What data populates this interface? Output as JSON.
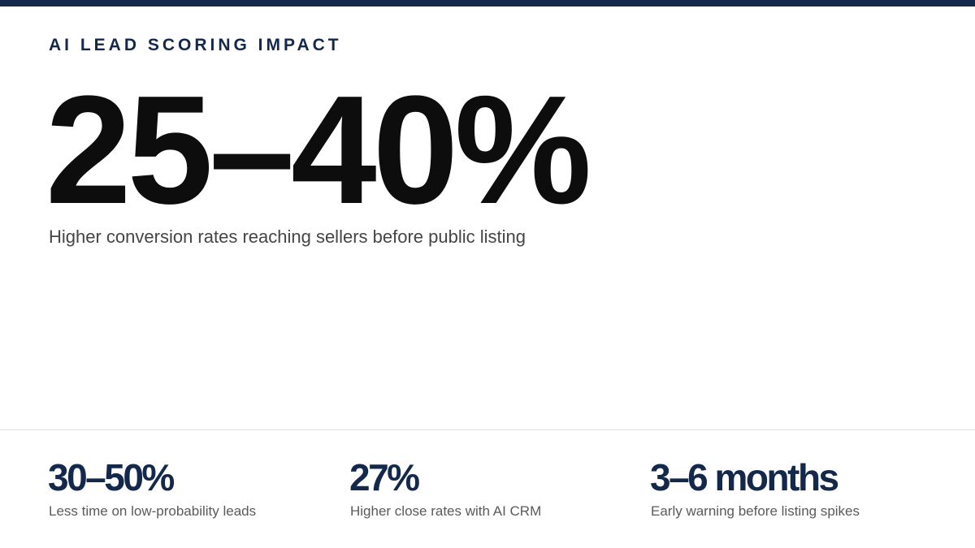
{
  "header": {
    "title": "AI LEAD SCORING IMPACT"
  },
  "hero": {
    "value": "25–40%",
    "caption": "Higher conversion rates reaching sellers before public listing"
  },
  "stats": [
    {
      "value": "30–50%",
      "label": "Less time on low-probability leads"
    },
    {
      "value": "27%",
      "label": "Higher close rates with AI CRM"
    },
    {
      "value": "3–6 months",
      "label": "Early warning before listing spikes"
    }
  ]
}
